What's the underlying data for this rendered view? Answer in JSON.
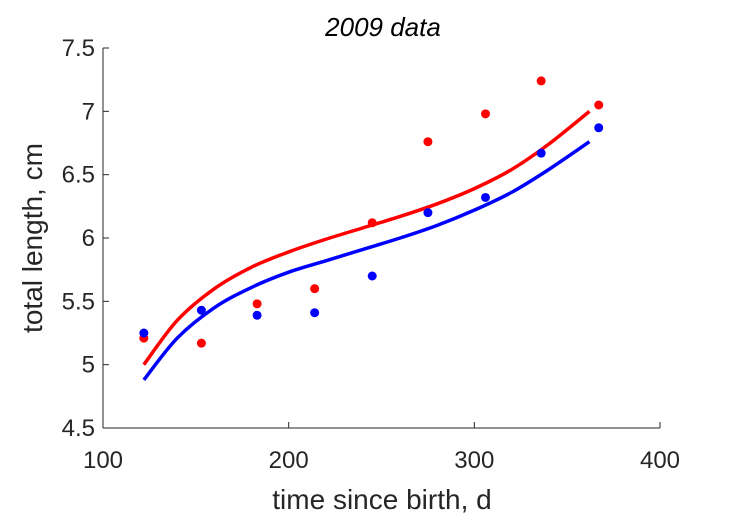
{
  "chart_data": {
    "type": "scatter",
    "title": "2009 data",
    "xlabel": "time since birth, d",
    "ylabel": "total length, cm",
    "xlim": [
      100,
      400
    ],
    "ylim": [
      4.5,
      7.5
    ],
    "xticks": [
      100,
      200,
      300,
      400
    ],
    "xtick_labels": [
      "100",
      "200",
      "300",
      "400"
    ],
    "yticks": [
      4.5,
      5,
      5.5,
      6,
      6.5,
      7,
      7.5
    ],
    "ytick_labels": [
      "4.5",
      "5",
      "5.5",
      "6",
      "6.5",
      "7",
      "7.5"
    ],
    "grid": false,
    "legend": "none",
    "series": [
      {
        "color": "#ff0000",
        "points": [
          {
            "x": 122,
            "y": 5.21
          },
          {
            "x": 153,
            "y": 5.17
          },
          {
            "x": 183,
            "y": 5.48
          },
          {
            "x": 214,
            "y": 5.6
          },
          {
            "x": 245,
            "y": 6.12
          },
          {
            "x": 275,
            "y": 6.76
          },
          {
            "x": 306,
            "y": 6.98
          },
          {
            "x": 336,
            "y": 7.24
          },
          {
            "x": 367,
            "y": 7.05
          }
        ],
        "fit": [
          {
            "x": 122,
            "y": 5.0
          },
          {
            "x": 140,
            "y": 5.35
          },
          {
            "x": 160,
            "y": 5.6
          },
          {
            "x": 180,
            "y": 5.77
          },
          {
            "x": 200,
            "y": 5.89
          },
          {
            "x": 220,
            "y": 5.99
          },
          {
            "x": 240,
            "y": 6.08
          },
          {
            "x": 260,
            "y": 6.17
          },
          {
            "x": 280,
            "y": 6.27
          },
          {
            "x": 300,
            "y": 6.39
          },
          {
            "x": 320,
            "y": 6.54
          },
          {
            "x": 340,
            "y": 6.74
          },
          {
            "x": 362,
            "y": 7.0
          }
        ]
      },
      {
        "color": "#0000ff",
        "points": [
          {
            "x": 122,
            "y": 5.25
          },
          {
            "x": 153,
            "y": 5.43
          },
          {
            "x": 183,
            "y": 5.39
          },
          {
            "x": 214,
            "y": 5.41
          },
          {
            "x": 245,
            "y": 5.7
          },
          {
            "x": 275,
            "y": 6.2
          },
          {
            "x": 306,
            "y": 6.32
          },
          {
            "x": 336,
            "y": 6.67
          },
          {
            "x": 367,
            "y": 6.87
          }
        ],
        "fit": [
          {
            "x": 122,
            "y": 4.88
          },
          {
            "x": 140,
            "y": 5.21
          },
          {
            "x": 160,
            "y": 5.45
          },
          {
            "x": 180,
            "y": 5.61
          },
          {
            "x": 200,
            "y": 5.73
          },
          {
            "x": 220,
            "y": 5.82
          },
          {
            "x": 240,
            "y": 5.91
          },
          {
            "x": 260,
            "y": 6.0
          },
          {
            "x": 280,
            "y": 6.1
          },
          {
            "x": 300,
            "y": 6.22
          },
          {
            "x": 320,
            "y": 6.36
          },
          {
            "x": 340,
            "y": 6.54
          },
          {
            "x": 362,
            "y": 6.76
          }
        ]
      }
    ]
  }
}
